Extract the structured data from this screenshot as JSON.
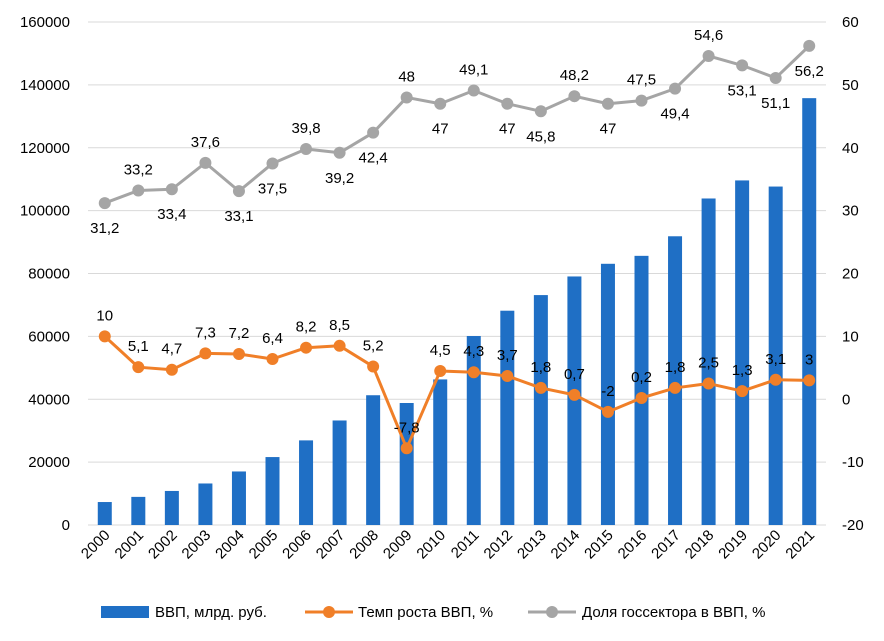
{
  "chart_data": {
    "type": "bar+line",
    "title": "",
    "categories": [
      "2000",
      "2001",
      "2002",
      "2003",
      "2004",
      "2005",
      "2006",
      "2007",
      "2008",
      "2009",
      "2010",
      "2011",
      "2012",
      "2013",
      "2014",
      "2015",
      "2016",
      "2017",
      "2018",
      "2019",
      "2020",
      "2021"
    ],
    "series": [
      {
        "name": "ВВП, млрд. руб.",
        "type": "bar",
        "axis": "left",
        "color": "#1f6fc5",
        "values": [
          7306,
          8944,
          10831,
          13208,
          17027,
          21610,
          26917,
          33248,
          41277,
          38807,
          46309,
          60114,
          68164,
          73134,
          79058,
          83087,
          85616,
          91843,
          103862,
          109608,
          107658,
          135774
        ]
      },
      {
        "name": "Темп роста ВВП, %",
        "type": "line",
        "axis": "right",
        "color": "#f07f28",
        "values": [
          10,
          5.1,
          4.7,
          7.3,
          7.2,
          6.4,
          8.2,
          8.5,
          5.2,
          -7.8,
          4.5,
          4.3,
          3.7,
          1.8,
          0.7,
          -2,
          0.2,
          1.8,
          2.5,
          1.3,
          3.1,
          3
        ],
        "labels": [
          "10",
          "5,1",
          "4,7",
          "7,3",
          "7,2",
          "6,4",
          "8,2",
          "8,5",
          "5,2",
          "-7,8",
          "4,5",
          "4,3",
          "3,7",
          "1,8",
          "0,7",
          "-2",
          "0,2",
          "1,8",
          "2,5",
          "1,3",
          "3,1",
          "3"
        ]
      },
      {
        "name": "Доля госсектора в ВВП, %",
        "type": "line",
        "axis": "right",
        "color": "#a5a5a5",
        "values": [
          31.2,
          33.2,
          33.4,
          37.6,
          33.1,
          37.5,
          39.8,
          39.2,
          42.4,
          48,
          47,
          49.1,
          47,
          45.8,
          48.2,
          47,
          47.5,
          49.4,
          54.6,
          53.1,
          51.1,
          56.2
        ],
        "labels": [
          "31,2",
          "33,2",
          "33,4",
          "37,6",
          "33,1",
          "37,5",
          "39,8",
          "39,2",
          "42,4",
          "48",
          "47",
          "49,1",
          "47",
          "45,8",
          "48,2",
          "47",
          "47,5",
          "49,4",
          "54,6",
          "53,1",
          "51,1",
          "56,2"
        ]
      }
    ],
    "y_left": {
      "min": 0,
      "max": 160000,
      "step": 20000,
      "ticks": [
        "0",
        "20000",
        "40000",
        "60000",
        "80000",
        "100000",
        "120000",
        "140000",
        "160000"
      ]
    },
    "y_right": {
      "min": -20,
      "max": 60,
      "step": 10,
      "ticks": [
        "-20",
        "-10",
        "0",
        "10",
        "20",
        "30",
        "40",
        "50",
        "60"
      ]
    },
    "grid": "horizontal",
    "legend_position": "bottom"
  }
}
